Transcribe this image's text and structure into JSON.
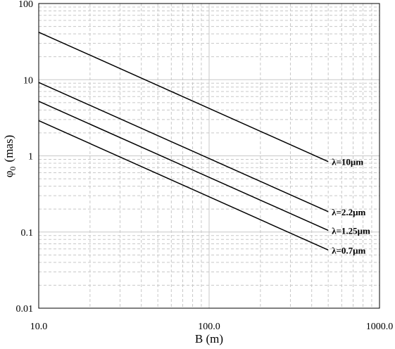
{
  "chart_data": {
    "type": "line",
    "x_scale": "log",
    "y_scale": "log",
    "xlabel": "B (m)",
    "ylabel_main": "φ",
    "ylabel_sub": "0",
    "ylabel_tail": "(mas)",
    "xlim": [
      10,
      1000
    ],
    "ylim": [
      0.01,
      100
    ],
    "x_ticks": [
      {
        "value": 10,
        "label": "10.0"
      },
      {
        "value": 100,
        "label": "100.0"
      },
      {
        "value": 1000,
        "label": "1000.0"
      }
    ],
    "y_ticks": [
      {
        "value": 0.01,
        "label": "0.01"
      },
      {
        "value": 0.1,
        "label": "0.1"
      },
      {
        "value": 1,
        "label": "1"
      },
      {
        "value": 10,
        "label": "10"
      },
      {
        "value": 100,
        "label": "100"
      }
    ],
    "grid": true,
    "series": [
      {
        "name": "λ=10μm",
        "x": [
          10,
          500
        ],
        "y": [
          42,
          0.84
        ]
      },
      {
        "name": "λ=2.2μm",
        "x": [
          10,
          500
        ],
        "y": [
          9.2,
          0.185
        ]
      },
      {
        "name": "λ=1.25μm",
        "x": [
          10,
          500
        ],
        "y": [
          5.2,
          0.105
        ]
      },
      {
        "name": "λ=0.7μm",
        "x": [
          10,
          500
        ],
        "y": [
          2.9,
          0.058
        ]
      }
    ]
  }
}
